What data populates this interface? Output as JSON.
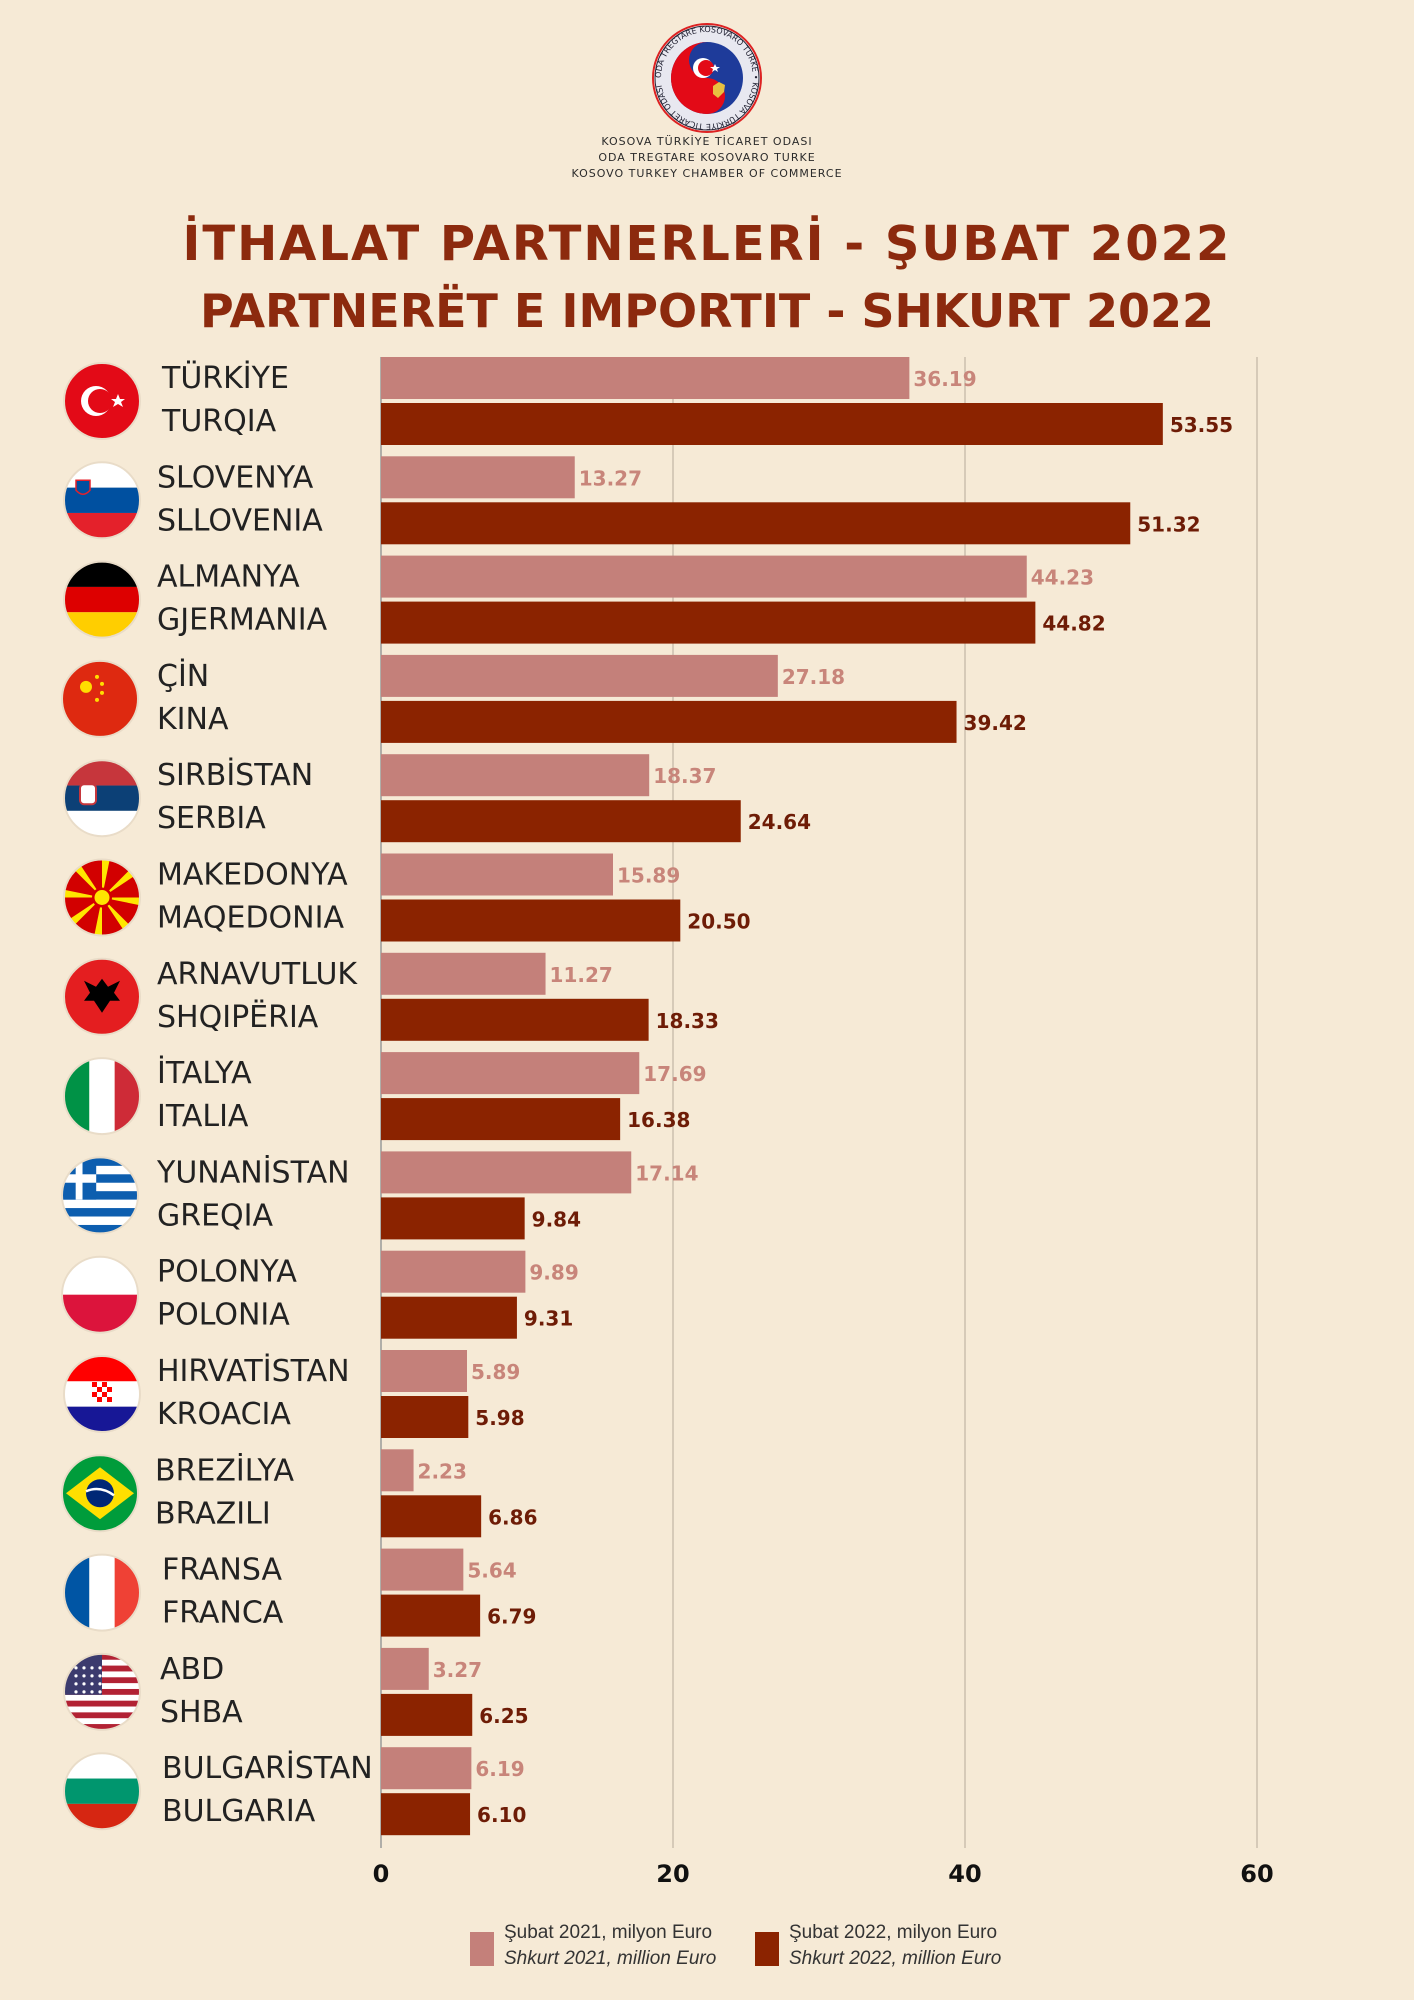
{
  "header": {
    "org_lines": [
      "KOSOVA TÜRKİYE TİCARET ODASI",
      "ODA TREGTARE KOSOVARO TURKE",
      "KOSOVO TURKEY CHAMBER OF COMMERCE"
    ],
    "logo_ring_text": "ODA TREGTARE KOSOVARO TURKE • KOSOVA TÜRKİYE TİCARET ODASI",
    "title_tr": "İTHALAT PARTNERLERİ - ŞUBAT 2022",
    "title_sq": "PARTNERËT E IMPORTIT - SHKURT 2022"
  },
  "colors": {
    "background": "#f6ead6",
    "series_2021": "#c4807a",
    "series_2022": "#8b2300",
    "title": "#8c2a0e"
  },
  "chart_data": {
    "type": "bar",
    "orientation": "horizontal",
    "categories": [
      [
        "TÜRKİYE",
        "TURQIA"
      ],
      [
        "SLOVENYA",
        "SLLOVENIA"
      ],
      [
        "ALMANYA",
        "GJERMANIA"
      ],
      [
        "ÇİN",
        "KINA"
      ],
      [
        "SIRBİSTAN",
        "SERBIA"
      ],
      [
        "MAKEDONYA",
        "MAQEDONIA"
      ],
      [
        "ARNAVUTLUK",
        "SHQIPËRIA"
      ],
      [
        "İTALYA",
        "ITALIA"
      ],
      [
        "YUNANİSTAN",
        "GREQIA"
      ],
      [
        "POLONYA",
        "POLONIA"
      ],
      [
        "HIRVATİSTAN",
        "KROACIA"
      ],
      [
        "BREZİLYA",
        "BRAZILI"
      ],
      [
        "FRANSA",
        "FRANCA"
      ],
      [
        "ABD",
        "SHBA"
      ],
      [
        "BULGARİSTAN",
        "BULGARIA"
      ]
    ],
    "flags": [
      "turkey-flag-icon",
      "slovenia-flag-icon",
      "germany-flag-icon",
      "china-flag-icon",
      "serbia-flag-icon",
      "macedonia-flag-icon",
      "albania-flag-icon",
      "italy-flag-icon",
      "greece-flag-icon",
      "poland-flag-icon",
      "croatia-flag-icon",
      "brazil-flag-icon",
      "france-flag-icon",
      "usa-flag-icon",
      "bulgaria-flag-icon"
    ],
    "series": [
      {
        "name": "Şubat 2021, milyon Euro / Shkurt 2021, million Euro",
        "values": [
          36.19,
          13.27,
          44.23,
          27.18,
          18.37,
          15.89,
          11.27,
          17.69,
          17.14,
          9.89,
          5.89,
          2.23,
          5.64,
          3.27,
          6.19
        ],
        "labels": [
          "36.19",
          "13.27",
          "44.23",
          "27.18",
          "18.37",
          "15.89",
          "11.27",
          "17.69",
          "17.14",
          "9.89",
          "5.89",
          "2.23",
          "5.64",
          "3.27",
          "6.19"
        ]
      },
      {
        "name": "Şubat 2022, milyon Euro / Shkurt 2022, million Euro",
        "values": [
          53.55,
          51.32,
          44.82,
          39.42,
          24.64,
          20.5,
          18.33,
          16.38,
          9.84,
          9.31,
          5.98,
          6.86,
          6.79,
          6.25,
          6.1
        ],
        "labels": [
          "53.55",
          "51.32",
          "44.82",
          "39.42",
          "24.64",
          "20.50",
          "18.33",
          "16.38",
          "9.84",
          "9.31",
          "5.98",
          "6.86",
          "6.79",
          "6.25",
          "6.10"
        ]
      }
    ],
    "xlim": [
      0,
      60
    ],
    "ticks": [
      0,
      20,
      40,
      60
    ],
    "tick_labels": [
      "0",
      "20",
      "40",
      "60"
    ],
    "grid": "vertical",
    "legend_position": "bottom-center"
  },
  "legend": {
    "s2021_tr": "Şubat 2021, milyon Euro",
    "s2021_sq": "Shkurt 2021, million Euro",
    "s2022_tr": "Şubat 2022, milyon Euro",
    "s2022_sq": "Shkurt 2022, million Euro"
  }
}
